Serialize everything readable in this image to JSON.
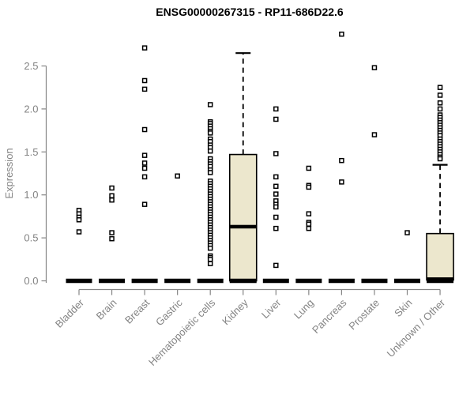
{
  "title": "ENSG00000267315 - RP11-686D22.6",
  "chart_data": {
    "type": "boxplot",
    "title": "ENSG00000267315 - RP11-686D22.6",
    "ylabel": "Expression",
    "xlabel": "",
    "ylim": [
      0,
      2.5
    ],
    "yticks": [
      0.0,
      0.5,
      1.0,
      1.5,
      2.0,
      2.5
    ],
    "ytick_labels": [
      "0.0",
      "0.5",
      "1.0",
      "1.5",
      "2.0",
      "2.5"
    ],
    "grid": false,
    "legend": "none",
    "colors": {
      "box_fill": "#ece7cd",
      "box_stroke": "#000000",
      "median": "#000000",
      "outlier_stroke": "#000000",
      "outlier_fill": "#ffffff",
      "axis": "#858585",
      "tick_text": "#848484",
      "title_text": "#000000"
    },
    "categories": [
      {
        "label": "Bladder",
        "q1": 0,
        "median": 0,
        "q3": 0,
        "whisker_low": 0,
        "whisker_high": 0,
        "outliers": [
          0.82,
          0.78,
          0.74,
          0.71,
          0.57
        ]
      },
      {
        "label": "Brain",
        "q1": 0,
        "median": 0,
        "q3": 0,
        "whisker_low": 0,
        "whisker_high": 0,
        "outliers": [
          1.08,
          0.99,
          0.94,
          0.56,
          0.49
        ]
      },
      {
        "label": "Breast",
        "q1": 0,
        "median": 0,
        "q3": 0,
        "whisker_low": 0,
        "whisker_high": 0,
        "outliers": [
          2.71,
          2.33,
          2.23,
          1.76,
          1.46,
          1.37,
          1.31,
          1.21,
          0.89
        ]
      },
      {
        "label": "Gastric",
        "q1": 0,
        "median": 0,
        "q3": 0,
        "whisker_low": 0,
        "whisker_high": 0,
        "outliers": [
          1.22
        ]
      },
      {
        "label": "Hematopoietic cells",
        "q1": 0,
        "median": 0,
        "q3": 0,
        "whisker_low": 0,
        "whisker_high": 0,
        "outliers": [
          2.05,
          1.85,
          1.83,
          1.8,
          1.77,
          1.74,
          1.72,
          1.65,
          1.62,
          1.58,
          1.55,
          1.51,
          1.42,
          1.39,
          1.36,
          1.33,
          1.29,
          1.26,
          1.16,
          1.13,
          1.1,
          1.07,
          1.04,
          1.01,
          0.98,
          0.95,
          0.92,
          0.89,
          0.86,
          0.83,
          0.8,
          0.77,
          0.74,
          0.71,
          0.68,
          0.65,
          0.62,
          0.59,
          0.56,
          0.53,
          0.5,
          0.47,
          0.44,
          0.41,
          0.38,
          0.29,
          0.27,
          0.25,
          0.2
        ]
      },
      {
        "label": "Kidney",
        "q1": 0,
        "median": 0.63,
        "q3": 1.47,
        "whisker_low": 0,
        "whisker_high": 2.65,
        "outliers": []
      },
      {
        "label": "Liver",
        "q1": 0,
        "median": 0,
        "q3": 0,
        "whisker_low": 0,
        "whisker_high": 0,
        "outliers": [
          2.0,
          1.88,
          1.48,
          1.21,
          1.1,
          1.01,
          0.93,
          0.89,
          0.86,
          0.74,
          0.61,
          0.18
        ]
      },
      {
        "label": "Lung",
        "q1": 0,
        "median": 0,
        "q3": 0,
        "whisker_low": 0,
        "whisker_high": 0,
        "outliers": [
          1.31,
          1.11,
          1.09,
          0.78,
          0.68,
          0.66,
          0.61
        ]
      },
      {
        "label": "Pancreas",
        "q1": 0,
        "median": 0,
        "q3": 0,
        "whisker_low": 0,
        "whisker_high": 0,
        "outliers": [
          2.87,
          1.4,
          1.15
        ]
      },
      {
        "label": "Prostate",
        "q1": 0,
        "median": 0,
        "q3": 0,
        "whisker_low": 0,
        "whisker_high": 0,
        "outliers": [
          2.48,
          1.7
        ]
      },
      {
        "label": "Skin",
        "q1": 0,
        "median": 0,
        "q3": 0,
        "whisker_low": 0,
        "whisker_high": 0,
        "outliers": [
          0.56
        ]
      },
      {
        "label": "Unknown / Other",
        "q1": 0.01,
        "median": 0.02,
        "q3": 0.55,
        "whisker_low": 0,
        "whisker_high": 1.35,
        "outliers": [
          2.25,
          2.16,
          2.07,
          2.0,
          1.93,
          1.9,
          1.87,
          1.84,
          1.81,
          1.78,
          1.75,
          1.72,
          1.69,
          1.65,
          1.62,
          1.59,
          1.56,
          1.53,
          1.5,
          1.47,
          1.44,
          1.42
        ]
      }
    ]
  }
}
